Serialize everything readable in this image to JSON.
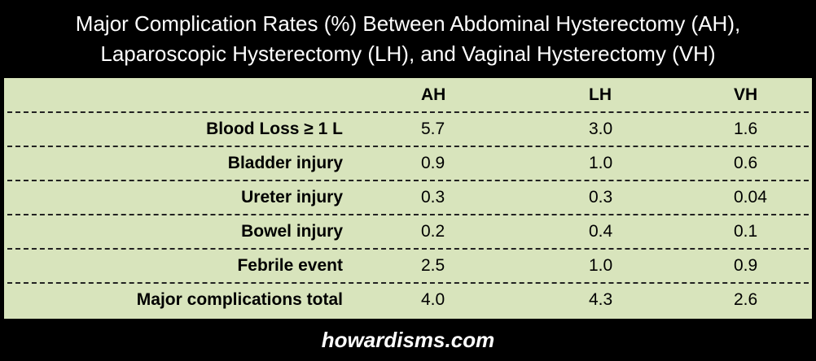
{
  "colors": {
    "frame": "#000000",
    "table_background": "#d8e4bc",
    "title_text": "#ffffff",
    "cell_text": "#000000",
    "divider": "#222222"
  },
  "chart_data": {
    "type": "table",
    "title_lines": [
      "Major Complication Rates (%) Between Abdominal Hysterectomy (AH),",
      "Laparoscopic Hysterectomy (LH), and Vaginal Hysterectomy (VH)"
    ],
    "columns": [
      "AH",
      "LH",
      "VH"
    ],
    "rows": [
      {
        "label": "Blood Loss ≥ 1 L",
        "values": [
          "5.7",
          "3.0",
          "1.6"
        ]
      },
      {
        "label": "Bladder injury",
        "values": [
          "0.9",
          "1.0",
          "0.6"
        ]
      },
      {
        "label": "Ureter injury",
        "values": [
          "0.3",
          "0.3",
          "0.04"
        ]
      },
      {
        "label": "Bowel injury",
        "values": [
          "0.2",
          "0.4",
          "0.1"
        ]
      },
      {
        "label": "Febrile event",
        "values": [
          "2.5",
          "1.0",
          "0.9"
        ]
      },
      {
        "label": "Major complications total",
        "values": [
          "4.0",
          "4.3",
          "2.6"
        ]
      }
    ],
    "gridlines": "dashed horizontal"
  },
  "footer": {
    "text": "howardisms.com"
  }
}
